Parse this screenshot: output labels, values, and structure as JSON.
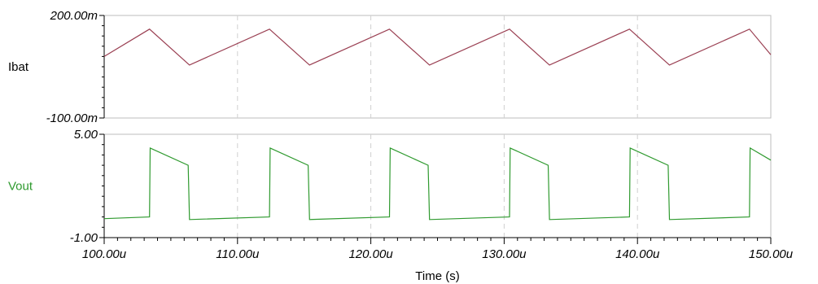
{
  "chart_data": [
    {
      "type": "line",
      "signal_label": "Ibat",
      "ylabel": "",
      "ylim": [
        -0.1,
        0.2
      ],
      "y_tick_labels": [
        "200.00m",
        "-100.00m"
      ],
      "color": "#9a3f52",
      "series": [
        {
          "x": [
            100.0,
            103.4,
            106.4,
            112.4,
            115.4,
            121.4,
            124.4,
            130.4,
            133.4,
            139.4,
            142.4,
            148.4,
            150.0
          ],
          "values": [
            0.08,
            0.16,
            0.055,
            0.16,
            0.055,
            0.16,
            0.055,
            0.16,
            0.055,
            0.16,
            0.055,
            0.16,
            0.085
          ]
        }
      ]
    },
    {
      "type": "line",
      "signal_label": "Vout",
      "ylabel": "",
      "ylim": [
        -1.0,
        5.0
      ],
      "y_tick_labels": [
        "5.00",
        "-1.00"
      ],
      "color": "#2f9a2f",
      "series": [
        {
          "x": [
            100.0,
            103.4,
            103.45,
            106.3,
            106.4,
            112.4,
            112.45,
            115.3,
            115.4,
            121.4,
            121.45,
            124.3,
            124.4,
            130.4,
            130.45,
            133.3,
            133.4,
            139.4,
            139.45,
            142.3,
            142.4,
            148.4,
            148.45,
            150.0
          ],
          "values": [
            0.1,
            0.2,
            4.2,
            3.2,
            0.05,
            0.2,
            4.2,
            3.2,
            0.05,
            0.2,
            4.2,
            3.2,
            0.05,
            0.2,
            4.2,
            3.2,
            0.05,
            0.2,
            4.2,
            3.2,
            0.05,
            0.2,
            4.2,
            3.5
          ]
        }
      ]
    }
  ],
  "x_axis": {
    "title": "Time (s)",
    "xlim": [
      100,
      150
    ],
    "ticks": [
      100,
      110,
      120,
      130,
      140,
      150
    ],
    "tick_labels": [
      "100.00u",
      "110.00u",
      "120.00u",
      "130.00u",
      "140.00u",
      "150.00u"
    ],
    "grid": "dashed-vertical"
  }
}
